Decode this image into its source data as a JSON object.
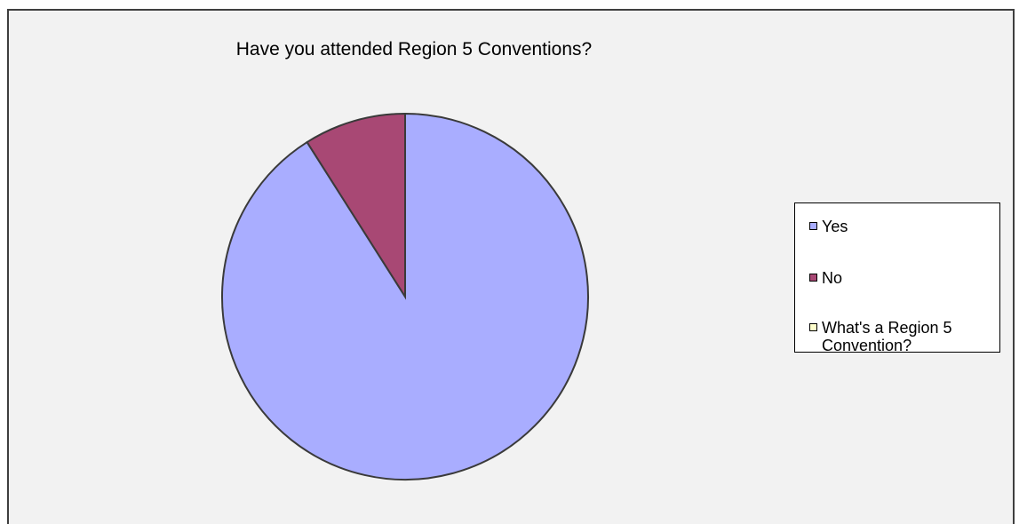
{
  "chart_data": {
    "type": "pie",
    "title": "Have you attended Region 5 Conventions?",
    "categories": [
      "Yes",
      "No",
      "What's a Region 5 Convention?"
    ],
    "values": [
      91,
      9,
      0
    ],
    "colors": [
      "#a9adff",
      "#a84874",
      "#ffffcc"
    ],
    "start_angle_deg": 0,
    "direction": "counter-clockwise",
    "legend_position": "right"
  }
}
